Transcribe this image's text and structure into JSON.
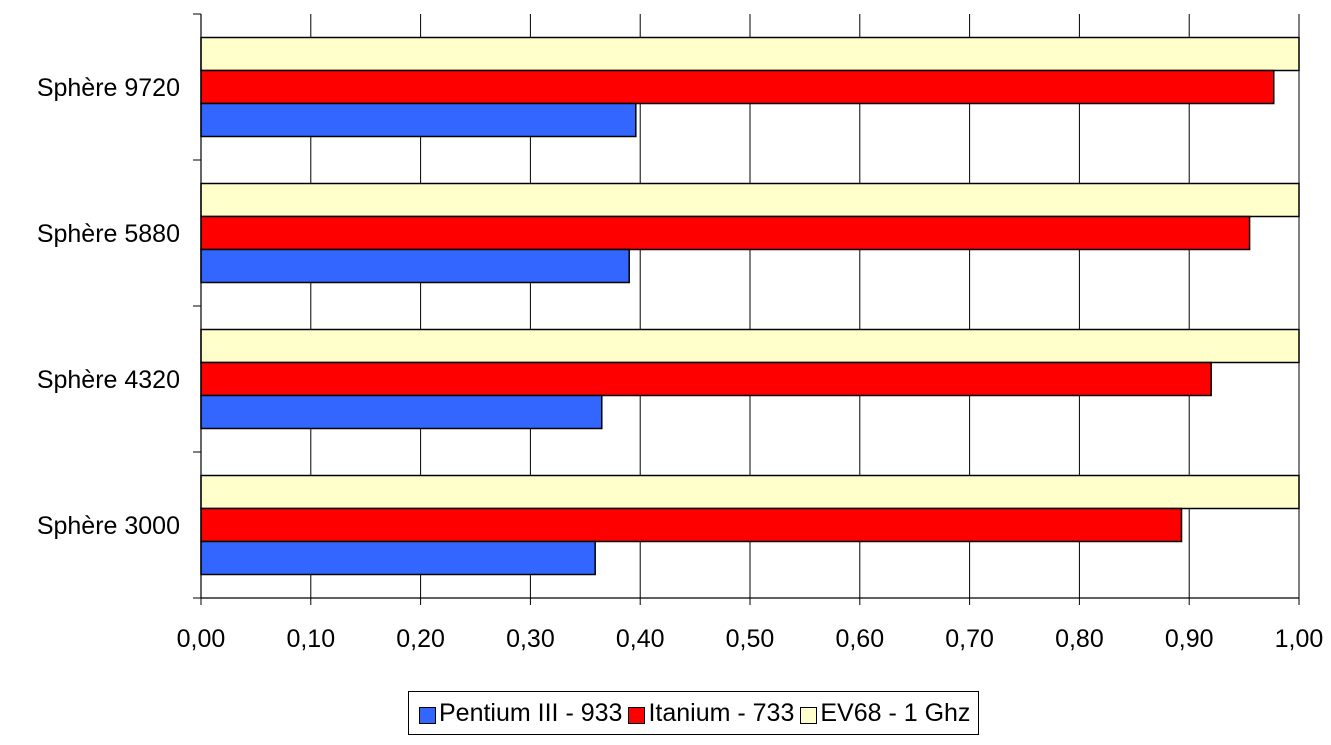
{
  "chart_data": {
    "type": "bar",
    "orientation": "horizontal",
    "categories": [
      "Sphère 9720",
      "Sphère 5880",
      "Sphère 4320",
      "Sphère 3000"
    ],
    "series": [
      {
        "name": "Pentium III - 933",
        "color": "#3366ff",
        "values": [
          0.396,
          0.39,
          0.365,
          0.359
        ]
      },
      {
        "name": "Itanium - 733",
        "color": "#ff0000",
        "values": [
          0.977,
          0.955,
          0.92,
          0.893
        ]
      },
      {
        "name": "EV68 - 1 Ghz",
        "color": "#ffffcc",
        "values": [
          1.0,
          1.0,
          1.0,
          1.0
        ]
      }
    ],
    "xlim": [
      0,
      1
    ],
    "xticks": [
      "0,00",
      "0,10",
      "0,20",
      "0,30",
      "0,40",
      "0,50",
      "0,60",
      "0,70",
      "0,80",
      "0,90",
      "1,00"
    ],
    "grid": true,
    "legend_position": "bottom"
  }
}
